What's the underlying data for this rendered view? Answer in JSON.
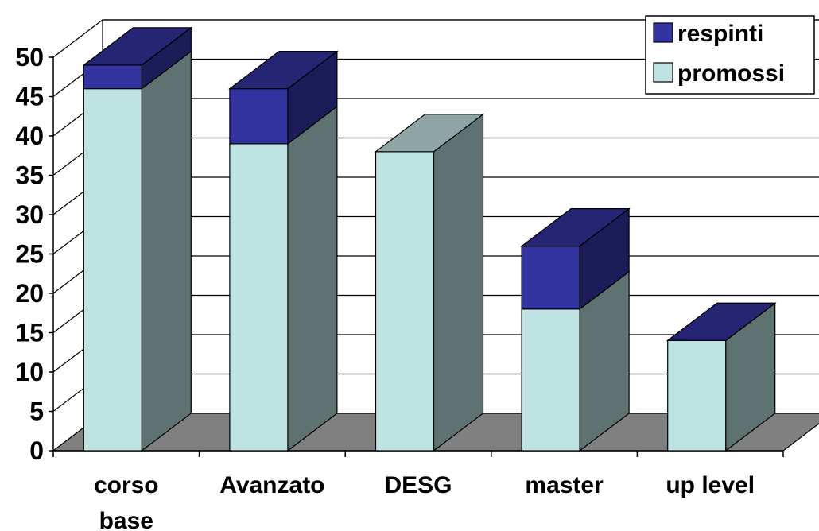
{
  "chart_data": {
    "type": "bar",
    "stacked": true,
    "three_d": true,
    "categories": [
      "corso base",
      "Avanzato",
      "DESG",
      "master",
      "up level"
    ],
    "series": [
      {
        "name": "promossi",
        "values": [
          46,
          39,
          38,
          18,
          14
        ],
        "color": "#BFE3E3"
      },
      {
        "name": "respinti",
        "values": [
          3,
          7,
          0,
          8,
          0
        ],
        "color": "#3333A0"
      }
    ],
    "title": "",
    "xlabel": "",
    "ylabel": "",
    "ylim": [
      0,
      50
    ],
    "yticks": [
      0,
      5,
      10,
      15,
      20,
      25,
      30,
      35,
      40,
      45,
      50
    ],
    "grid": true,
    "legend_position": "top-right",
    "floor_color": "#808080",
    "side_color": "#5F7272"
  }
}
